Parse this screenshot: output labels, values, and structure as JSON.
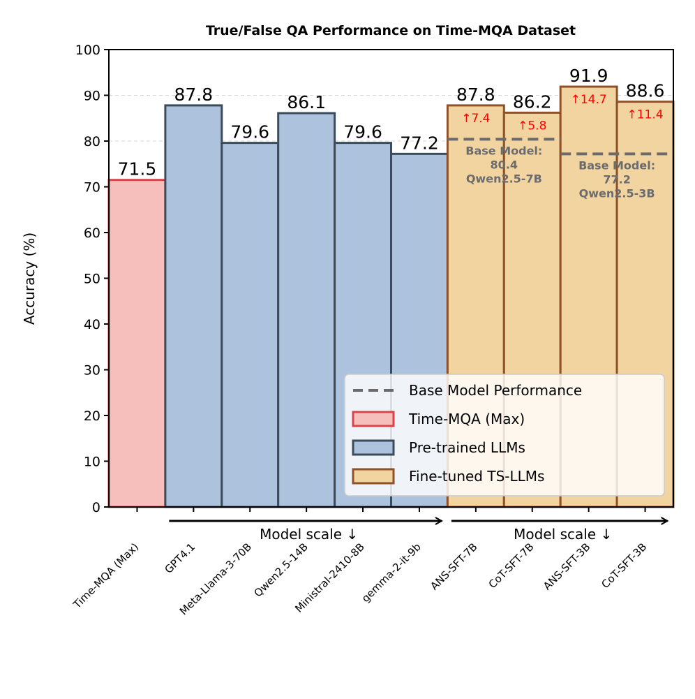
{
  "chart_data": {
    "type": "bar",
    "title": "True/False QA Performance on Time-MQA Dataset",
    "ylabel": "Accuracy (%)",
    "xlabel": "",
    "ylim": [
      0,
      100
    ],
    "yticks": [
      0,
      10,
      20,
      30,
      40,
      50,
      60,
      70,
      80,
      90,
      100
    ],
    "grid": "horizontal dashed",
    "categories": [
      "Time-MQA (Max)",
      "GPT4.1",
      "Meta-Llama-3-70B",
      "Qwen2.5-14B",
      "Ministral-2410-8B",
      "gemma-2-it-9b",
      "ANS-SFT-7B",
      "CoT-SFT-7B",
      "ANS-SFT-3B",
      "CoT-SFT-3B"
    ],
    "values": [
      71.5,
      87.8,
      79.6,
      86.1,
      79.6,
      77.2,
      87.8,
      86.2,
      91.9,
      88.6
    ],
    "value_labels": [
      "71.5",
      "87.8",
      "79.6",
      "86.1",
      "79.6",
      "77.2",
      "87.8",
      "86.2",
      "91.9",
      "88.6"
    ],
    "groups": [
      "Time-MQA (Max)",
      "Pre-trained LLMs",
      "Pre-trained LLMs",
      "Pre-trained LLMs",
      "Pre-trained LLMs",
      "Pre-trained LLMs",
      "Fine-tuned TS-LLMs",
      "Fine-tuned TS-LLMs",
      "Fine-tuned TS-LLMs",
      "Fine-tuned TS-LLMs"
    ],
    "improvements": [
      null,
      null,
      null,
      null,
      null,
      null,
      "↑7.4",
      "↑5.8",
      "↑14.7",
      "↑11.4"
    ],
    "base_models": [
      {
        "value": 80.4,
        "bars": [
          6,
          7
        ],
        "lines": [
          "Base Model:",
          "80.4",
          "Qwen2.5-7B"
        ]
      },
      {
        "value": 77.2,
        "bars": [
          8,
          9
        ],
        "lines": [
          "Base Model:",
          "77.2",
          "Qwen2.5-3B"
        ]
      }
    ],
    "scale_annotations": [
      {
        "label": "Model scale  ↓",
        "from_bar": 1,
        "to_bar": 5
      },
      {
        "label": "Model scale  ↓",
        "from_bar": 6,
        "to_bar": 9
      }
    ],
    "legend": {
      "position": "lower-right",
      "entries": [
        "Base Model Performance",
        "Time-MQA (Max)",
        "Pre-trained LLMs",
        "Fine-tuned TS-LLMs"
      ]
    },
    "colors": {
      "Time-MQA (Max)": {
        "fill": "#f7bfbc",
        "stroke": "#d9444a"
      },
      "Pre-trained LLMs": {
        "fill": "#adc2dc",
        "stroke": "#3b4b5c"
      },
      "Fine-tuned TS-LLMs": {
        "fill": "#f2d4a1",
        "stroke": "#8f5129"
      },
      "base_line": "#6b6b6b",
      "improvement": "#ff0000"
    }
  }
}
